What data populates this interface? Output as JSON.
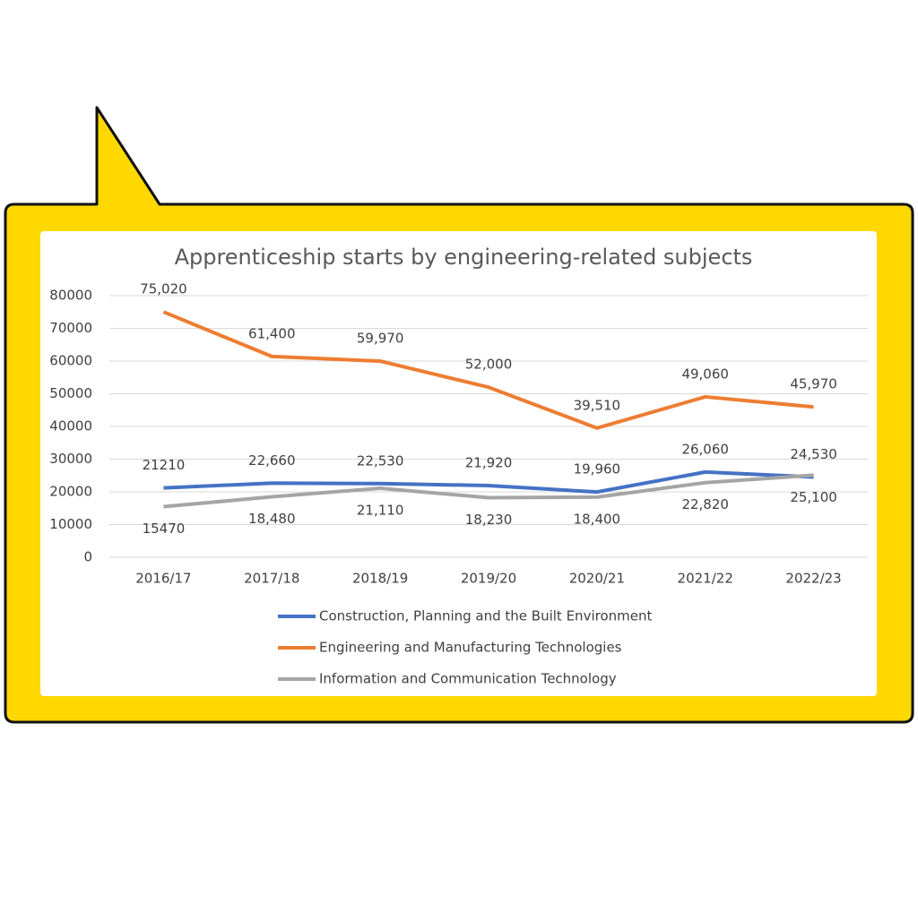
{
  "chart_data": {
    "type": "line",
    "title": "Apprenticeship starts by engineering-related subjects",
    "categories": [
      "2016/17",
      "2017/18",
      "2018/19",
      "2019/20",
      "2020/21",
      "2021/22",
      "2022/23"
    ],
    "ylim": [
      0,
      80000
    ],
    "yticks": [
      0,
      10000,
      20000,
      30000,
      40000,
      50000,
      60000,
      70000,
      80000
    ],
    "grid": true,
    "legend": "bottom",
    "series": [
      {
        "name": "Construction, Planning and the Built Environment",
        "color": "#4472c4",
        "values": [
          21210,
          22660,
          22530,
          21920,
          19960,
          26060,
          24530
        ],
        "value_labels": [
          "21210",
          "22,660",
          "22,530",
          "21,920",
          "19,960",
          "26,060",
          "24,530"
        ]
      },
      {
        "name": "Engineering and Manufacturing Technologies",
        "color": "#ed7d31",
        "values": [
          75020,
          61400,
          59970,
          52000,
          39510,
          49060,
          45970
        ],
        "value_labels": [
          "75,020",
          "61,400",
          "59,970",
          "52,000",
          "39,510",
          "49,060",
          "45,970"
        ]
      },
      {
        "name": "Information and Communication Technology",
        "color": "#a5a5a5",
        "values": [
          15470,
          18480,
          21110,
          18230,
          18400,
          22820,
          25100
        ],
        "value_labels": [
          "15470",
          "18,480",
          "21,110",
          "18,230",
          "18,400",
          "22,820",
          "25,100"
        ]
      }
    ]
  }
}
